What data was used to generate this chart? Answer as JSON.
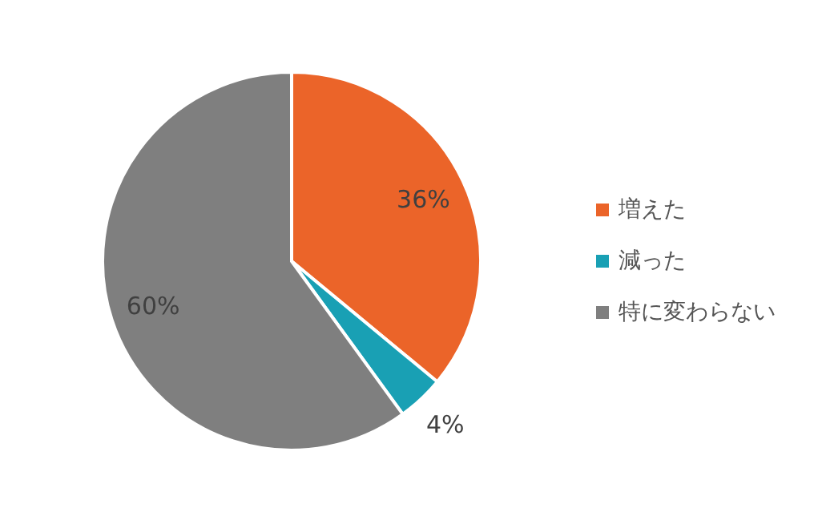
{
  "chart_data": {
    "type": "pie",
    "categories": [
      "増えた",
      "減った",
      "特に変わらない"
    ],
    "values": [
      36,
      4,
      60
    ],
    "colors": [
      "#eb6429",
      "#19a0b4",
      "#7f7f7f"
    ],
    "value_labels": [
      "36%",
      "4%",
      "60%"
    ],
    "legend": "right"
  }
}
